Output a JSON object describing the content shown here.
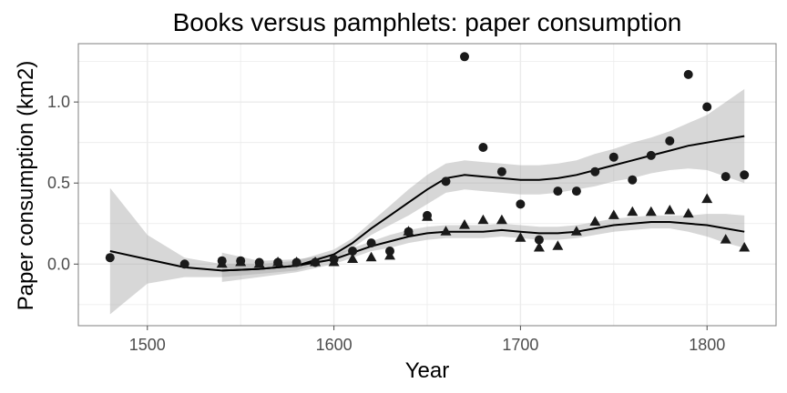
{
  "chart_data": {
    "type": "scatter",
    "title": "Books versus pamphlets: paper consumption",
    "xlabel": "Year",
    "ylabel": "Paper consumption (km2)",
    "xlim": [
      1463,
      1837
    ],
    "ylim": [
      -0.38,
      1.36
    ],
    "xticks": [
      1500,
      1600,
      1700,
      1800
    ],
    "yticks": [
      0.0,
      0.5,
      1.0
    ],
    "ytick_labels": [
      "0.0",
      "0.5",
      "1.0"
    ],
    "grid": true,
    "legend": "none",
    "series": [
      {
        "marker": "circle",
        "points": [
          [
            1480,
            0.04
          ],
          [
            1520,
            0.0
          ],
          [
            1540,
            0.02
          ],
          [
            1550,
            0.02
          ],
          [
            1560,
            0.01
          ],
          [
            1570,
            0.01
          ],
          [
            1580,
            0.01
          ],
          [
            1590,
            0.01
          ],
          [
            1600,
            0.03
          ],
          [
            1610,
            0.08
          ],
          [
            1620,
            0.13
          ],
          [
            1630,
            0.08
          ],
          [
            1640,
            0.2
          ],
          [
            1650,
            0.3
          ],
          [
            1660,
            0.51
          ],
          [
            1670,
            1.28
          ],
          [
            1680,
            0.72
          ],
          [
            1690,
            0.57
          ],
          [
            1700,
            0.37
          ],
          [
            1710,
            0.15
          ],
          [
            1720,
            0.45
          ],
          [
            1730,
            0.45
          ],
          [
            1740,
            0.57
          ],
          [
            1750,
            0.66
          ],
          [
            1760,
            0.52
          ],
          [
            1770,
            0.67
          ],
          [
            1780,
            0.76
          ],
          [
            1790,
            1.17
          ],
          [
            1800,
            0.97
          ],
          [
            1810,
            0.54
          ],
          [
            1820,
            0.55
          ]
        ],
        "smooth": [
          [
            1480,
            0.08
          ],
          [
            1500,
            0.03
          ],
          [
            1520,
            -0.02
          ],
          [
            1540,
            -0.04
          ],
          [
            1560,
            -0.03
          ],
          [
            1580,
            -0.01
          ],
          [
            1600,
            0.06
          ],
          [
            1610,
            0.13
          ],
          [
            1620,
            0.22
          ],
          [
            1630,
            0.3
          ],
          [
            1640,
            0.38
          ],
          [
            1650,
            0.46
          ],
          [
            1660,
            0.53
          ],
          [
            1670,
            0.55
          ],
          [
            1680,
            0.54
          ],
          [
            1690,
            0.53
          ],
          [
            1700,
            0.52
          ],
          [
            1710,
            0.52
          ],
          [
            1720,
            0.53
          ],
          [
            1730,
            0.55
          ],
          [
            1740,
            0.58
          ],
          [
            1750,
            0.61
          ],
          [
            1760,
            0.64
          ],
          [
            1770,
            0.67
          ],
          [
            1780,
            0.7
          ],
          [
            1790,
            0.73
          ],
          [
            1800,
            0.75
          ],
          [
            1810,
            0.77
          ],
          [
            1820,
            0.79
          ]
        ],
        "band_lower": [
          [
            1480,
            -0.31
          ],
          [
            1500,
            -0.12
          ],
          [
            1520,
            -0.08
          ],
          [
            1540,
            -0.08
          ],
          [
            1560,
            -0.06
          ],
          [
            1580,
            -0.04
          ],
          [
            1600,
            0.03
          ],
          [
            1610,
            0.1
          ],
          [
            1620,
            0.18
          ],
          [
            1630,
            0.24
          ],
          [
            1640,
            0.3
          ],
          [
            1650,
            0.37
          ],
          [
            1660,
            0.44
          ],
          [
            1670,
            0.46
          ],
          [
            1680,
            0.45
          ],
          [
            1690,
            0.44
          ],
          [
            1700,
            0.43
          ],
          [
            1710,
            0.43
          ],
          [
            1720,
            0.44
          ],
          [
            1730,
            0.46
          ],
          [
            1740,
            0.48
          ],
          [
            1750,
            0.51
          ],
          [
            1760,
            0.53
          ],
          [
            1770,
            0.56
          ],
          [
            1780,
            0.58
          ],
          [
            1790,
            0.59
          ],
          [
            1800,
            0.58
          ],
          [
            1810,
            0.54
          ],
          [
            1820,
            0.5
          ]
        ],
        "band_upper": [
          [
            1480,
            0.47
          ],
          [
            1500,
            0.18
          ],
          [
            1520,
            0.04
          ],
          [
            1540,
            0.0
          ],
          [
            1560,
            0.0
          ],
          [
            1580,
            0.02
          ],
          [
            1600,
            0.09
          ],
          [
            1610,
            0.16
          ],
          [
            1620,
            0.26
          ],
          [
            1630,
            0.36
          ],
          [
            1640,
            0.46
          ],
          [
            1650,
            0.55
          ],
          [
            1660,
            0.62
          ],
          [
            1670,
            0.64
          ],
          [
            1680,
            0.63
          ],
          [
            1690,
            0.62
          ],
          [
            1700,
            0.61
          ],
          [
            1710,
            0.61
          ],
          [
            1720,
            0.62
          ],
          [
            1730,
            0.64
          ],
          [
            1740,
            0.68
          ],
          [
            1750,
            0.71
          ],
          [
            1760,
            0.75
          ],
          [
            1770,
            0.78
          ],
          [
            1780,
            0.82
          ],
          [
            1790,
            0.87
          ],
          [
            1800,
            0.92
          ],
          [
            1810,
            1.0
          ],
          [
            1820,
            1.08
          ]
        ]
      },
      {
        "marker": "triangle",
        "points": [
          [
            1540,
            0.0
          ],
          [
            1550,
            0.01
          ],
          [
            1560,
            0.0
          ],
          [
            1570,
            0.01
          ],
          [
            1580,
            0.01
          ],
          [
            1590,
            0.01
          ],
          [
            1600,
            0.01
          ],
          [
            1610,
            0.03
          ],
          [
            1620,
            0.04
          ],
          [
            1630,
            0.05
          ],
          [
            1640,
            0.2
          ],
          [
            1650,
            0.29
          ],
          [
            1660,
            0.2
          ],
          [
            1670,
            0.24
          ],
          [
            1680,
            0.27
          ],
          [
            1690,
            0.27
          ],
          [
            1700,
            0.16
          ],
          [
            1710,
            0.1
          ],
          [
            1720,
            0.11
          ],
          [
            1730,
            0.2
          ],
          [
            1740,
            0.26
          ],
          [
            1750,
            0.3
          ],
          [
            1760,
            0.32
          ],
          [
            1770,
            0.32
          ],
          [
            1780,
            0.33
          ],
          [
            1790,
            0.31
          ],
          [
            1800,
            0.4
          ],
          [
            1810,
            0.15
          ],
          [
            1820,
            0.1
          ]
        ],
        "smooth": [
          [
            1540,
            -0.04
          ],
          [
            1560,
            -0.03
          ],
          [
            1580,
            -0.01
          ],
          [
            1600,
            0.03
          ],
          [
            1610,
            0.07
          ],
          [
            1620,
            0.11
          ],
          [
            1630,
            0.14
          ],
          [
            1640,
            0.17
          ],
          [
            1650,
            0.19
          ],
          [
            1660,
            0.2
          ],
          [
            1670,
            0.2
          ],
          [
            1680,
            0.2
          ],
          [
            1690,
            0.21
          ],
          [
            1700,
            0.2
          ],
          [
            1710,
            0.19
          ],
          [
            1720,
            0.19
          ],
          [
            1730,
            0.2
          ],
          [
            1740,
            0.22
          ],
          [
            1750,
            0.24
          ],
          [
            1760,
            0.25
          ],
          [
            1770,
            0.26
          ],
          [
            1780,
            0.26
          ],
          [
            1790,
            0.25
          ],
          [
            1800,
            0.24
          ],
          [
            1810,
            0.22
          ],
          [
            1820,
            0.2
          ]
        ],
        "band_lower": [
          [
            1540,
            -0.11
          ],
          [
            1560,
            -0.08
          ],
          [
            1580,
            -0.05
          ],
          [
            1600,
            0.0
          ],
          [
            1610,
            0.04
          ],
          [
            1620,
            0.08
          ],
          [
            1630,
            0.1
          ],
          [
            1640,
            0.13
          ],
          [
            1650,
            0.15
          ],
          [
            1660,
            0.16
          ],
          [
            1670,
            0.16
          ],
          [
            1680,
            0.16
          ],
          [
            1690,
            0.17
          ],
          [
            1700,
            0.16
          ],
          [
            1710,
            0.15
          ],
          [
            1720,
            0.15
          ],
          [
            1730,
            0.16
          ],
          [
            1740,
            0.18
          ],
          [
            1750,
            0.2
          ],
          [
            1760,
            0.21
          ],
          [
            1770,
            0.22
          ],
          [
            1780,
            0.22
          ],
          [
            1790,
            0.2
          ],
          [
            1800,
            0.17
          ],
          [
            1810,
            0.13
          ],
          [
            1820,
            0.1
          ]
        ],
        "band_upper": [
          [
            1540,
            0.07
          ],
          [
            1560,
            0.02
          ],
          [
            1580,
            0.03
          ],
          [
            1600,
            0.06
          ],
          [
            1610,
            0.1
          ],
          [
            1620,
            0.14
          ],
          [
            1630,
            0.18
          ],
          [
            1640,
            0.21
          ],
          [
            1650,
            0.23
          ],
          [
            1660,
            0.24
          ],
          [
            1670,
            0.24
          ],
          [
            1680,
            0.24
          ],
          [
            1690,
            0.25
          ],
          [
            1700,
            0.24
          ],
          [
            1710,
            0.23
          ],
          [
            1720,
            0.23
          ],
          [
            1730,
            0.24
          ],
          [
            1740,
            0.26
          ],
          [
            1750,
            0.28
          ],
          [
            1760,
            0.29
          ],
          [
            1770,
            0.3
          ],
          [
            1780,
            0.3
          ],
          [
            1790,
            0.3
          ],
          [
            1800,
            0.31
          ],
          [
            1810,
            0.31
          ],
          [
            1820,
            0.3
          ]
        ]
      }
    ],
    "colors": {
      "circle": "#1a1a1a",
      "triangle": "#1a1a1a",
      "line": "#000000",
      "band": "#a6a6a6",
      "grid": "#ebebeb",
      "panel_border": "#7f7f7f"
    }
  }
}
